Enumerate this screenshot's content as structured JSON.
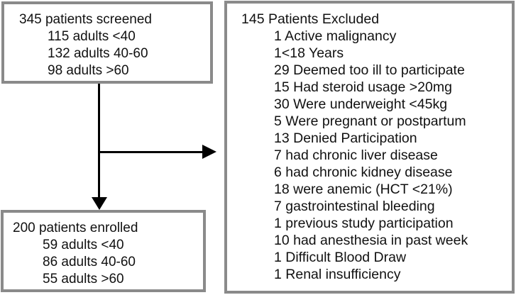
{
  "diagram": {
    "screened_box": {
      "title": "345 patients screened",
      "items": [
        "115 adults <40",
        "132 adults 40-60",
        "98 adults >60"
      ]
    },
    "enrolled_box": {
      "title": "200 patients enrolled",
      "items": [
        "59 adults <40",
        "86 adults 40-60",
        "55 adults >60"
      ]
    },
    "excluded_box": {
      "title": "145 Patients Excluded",
      "items": [
        "1 Active malignancy",
        "1<18 Years",
        "29 Deemed too ill to participate",
        "15 Had steroid usage >20mg",
        "30 Were underweight <45kg",
        "5 Were pregnant or postpartum",
        "13 Denied Participation",
        "7 had chronic liver disease",
        "6 had chronic kidney disease",
        "18 were anemic (HCT <21%)",
        "7 gastrointestinal bleeding",
        "1 previous study participation",
        "10 had anesthesia in past week",
        "1 Difficult Blood Draw",
        "1 Renal insufficiency"
      ]
    }
  },
  "colors": {
    "background": "#ffffff",
    "box_border": "#8a8a8a",
    "text": "#111111",
    "arrow": "#000000"
  }
}
